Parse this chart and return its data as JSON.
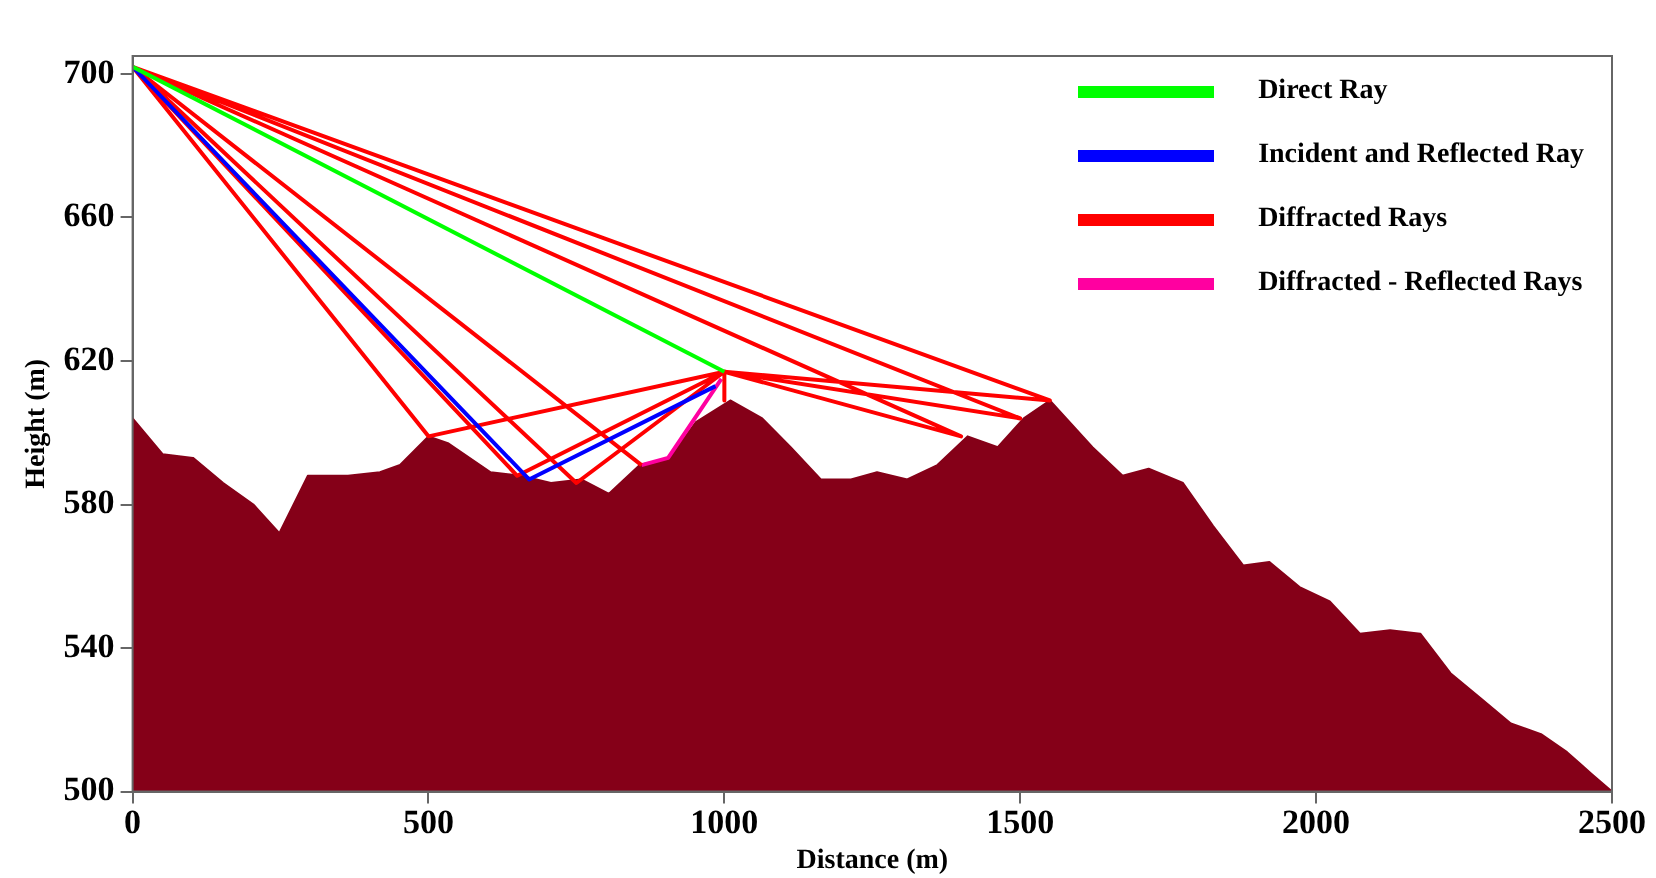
{
  "chart_data": {
    "type": "line",
    "xlabel": "Distance (m)",
    "ylabel": "Height (m)",
    "xlim": [
      0,
      2500
    ],
    "xticks": [
      0,
      500,
      1000,
      1500,
      2000,
      2500
    ],
    "ylim": [
      500,
      705
    ],
    "yticks": [
      500,
      540,
      580,
      620,
      660,
      700
    ],
    "grid": false,
    "legend": "top right",
    "marker": "none",
    "line_style": "solid",
    "series": [
      {
        "type": "area",
        "color": "#850018",
        "x": [
          0,
          51,
          102,
          153,
          204,
          248,
          296,
          364,
          418,
          452,
          500,
          534,
          605,
          656,
          707,
          758,
          805,
          857,
          908,
          952,
          1010,
          1064,
          1112,
          1163,
          1214,
          1258,
          1309,
          1360,
          1411,
          1462,
          1506,
          1550,
          1622,
          1673,
          1717,
          1775,
          1826,
          1877,
          1921,
          1972,
          2023,
          2074,
          2125,
          2176,
          2227,
          2278,
          2329,
          2380,
          2424,
          2465,
          2500
        ],
        "values": [
          604,
          594,
          593,
          586,
          580,
          572,
          588,
          588,
          589,
          591,
          599,
          597,
          589,
          588,
          586,
          587,
          583,
          591,
          593,
          603,
          609,
          604,
          596,
          587,
          587,
          589,
          587,
          591,
          599,
          596,
          604,
          609,
          596,
          588,
          590,
          586,
          574,
          563,
          564,
          557,
          553,
          544,
          545,
          544,
          533,
          526,
          519,
          516,
          511,
          505,
          500
        ]
      },
      {
        "name": "Direct Ray",
        "color": "#00ff00",
        "x": [
          0,
          1000
        ],
        "values": [
          702,
          617
        ]
      },
      {
        "name": "Incident and Reflected Ray",
        "color": "#0000ff",
        "x": [
          0,
          670,
          985
        ],
        "values": [
          702,
          587,
          613
        ]
      },
      {
        "name": "Diffracted Rays",
        "color": "#ff0000",
        "x": [
          0,
          500,
          1000,
          null,
          0,
          650,
          1000,
          null,
          0,
          750,
          1000,
          null,
          0,
          860,
          null,
          0,
          1400,
          1000,
          null,
          0,
          1500,
          1000,
          null,
          0,
          1550,
          1000,
          null,
          1000,
          1000
        ],
        "values": [
          702,
          599,
          617,
          null,
          702,
          588,
          617,
          null,
          702,
          586,
          617,
          null,
          702,
          591,
          null,
          702,
          599,
          617,
          null,
          702,
          604,
          617,
          null,
          702,
          609,
          617,
          null,
          617,
          609
        ]
      },
      {
        "name": "Diffracted - Reflected Rays",
        "color": "#ff00a0",
        "x": [
          860,
          905,
          995
        ],
        "values": [
          591,
          593,
          615
        ]
      }
    ]
  }
}
